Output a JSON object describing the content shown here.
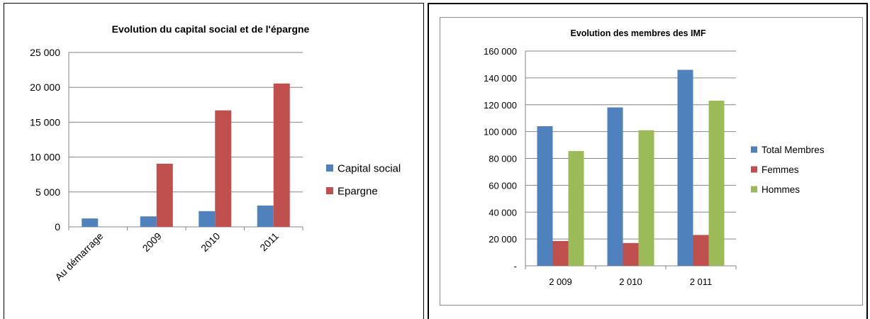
{
  "colors": {
    "blue": "#4f81bd",
    "red": "#c0504d",
    "green": "#9bbb59",
    "grid": "#868686",
    "axis": "#868686"
  },
  "chart_data": [
    {
      "type": "bar",
      "title": "Evolution du capital social et de l'épargne",
      "categories": [
        "Au démarrage",
        "2009",
        "2010",
        "2011"
      ],
      "series": [
        {
          "name": "Capital social",
          "color": "#4f81bd",
          "values": [
            1200,
            1500,
            2250,
            3050
          ]
        },
        {
          "name": "Epargne",
          "color": "#c0504d",
          "values": [
            0,
            9050,
            16700,
            20550
          ]
        }
      ],
      "ylim": [
        0,
        25000
      ],
      "yticks": [
        0,
        5000,
        10000,
        15000,
        20000,
        25000
      ],
      "ytick_labels": [
        "0",
        "5 000",
        "10 000",
        "15 000",
        "20 000",
        "25 000"
      ],
      "grid": true,
      "legend": "right",
      "xlabel": "",
      "ylabel": ""
    },
    {
      "type": "bar",
      "title": "Evolution des membres des IMF",
      "categories": [
        "2 009",
        "2 010",
        "2 011"
      ],
      "series": [
        {
          "name": "Total Membres",
          "color": "#4f81bd",
          "values": [
            104000,
            118000,
            146000
          ]
        },
        {
          "name": "Femmes",
          "color": "#c0504d",
          "values": [
            18500,
            17000,
            23000
          ]
        },
        {
          "name": "Hommes",
          "color": "#9bbb59",
          "values": [
            85500,
            101000,
            123000
          ]
        }
      ],
      "ylim": [
        0,
        160000
      ],
      "yticks": [
        0,
        20000,
        40000,
        60000,
        80000,
        100000,
        120000,
        140000,
        160000
      ],
      "ytick_labels": [
        "-",
        "20 000",
        "40 000",
        "60 000",
        "80 000",
        "100 000",
        "120 000",
        "140 000",
        "160 000"
      ],
      "grid": true,
      "legend": "right",
      "xlabel": "",
      "ylabel": ""
    }
  ]
}
